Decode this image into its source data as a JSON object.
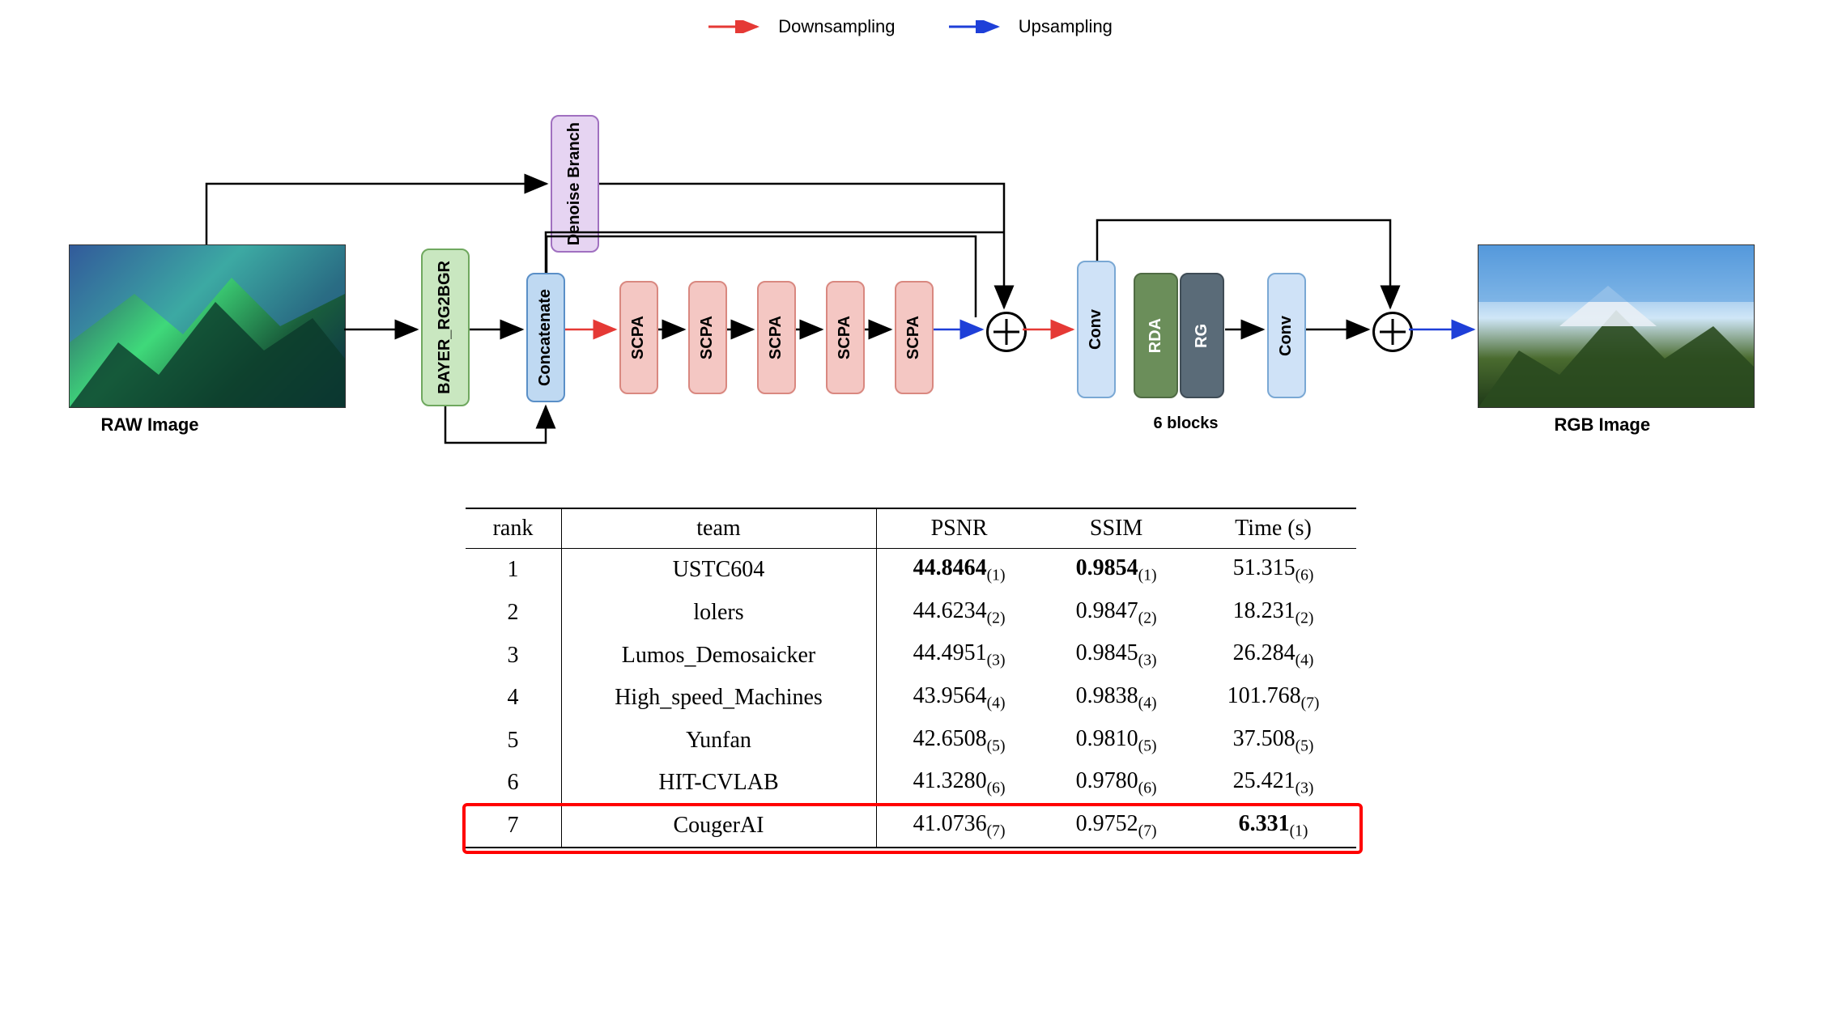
{
  "legend": {
    "downsampling": {
      "label": "Downsampling",
      "color": "#e53935"
    },
    "upsampling": {
      "label": "Upsampling",
      "color": "#1e3fd8"
    }
  },
  "diagram": {
    "raw_caption": "RAW Image",
    "rgb_caption": "RGB Image",
    "six_blocks_caption": "6 blocks",
    "blocks": {
      "denoise": {
        "label": "Denoise Branch",
        "fill": "#e6d4f2",
        "border": "#a070c0"
      },
      "bayer": {
        "label": "BAYER_RG2BGR",
        "fill": "#c9e7c0",
        "border": "#6fa85f"
      },
      "concat": {
        "label": "Concatenate",
        "fill": "#bfd9f2",
        "border": "#5a8fc7"
      },
      "scpa": {
        "label": "SCPA",
        "fill": "#f4c7c3",
        "border": "#d98880",
        "count": 5
      },
      "conv": {
        "label": "Conv",
        "fill": "#cfe2f7",
        "border": "#7aa8d4"
      },
      "rda": {
        "label": "RDA",
        "fill": "#6b8e5a",
        "border": "#4f6b43",
        "text": "#ffffff"
      },
      "rg": {
        "label": "RG",
        "fill": "#5a6b78",
        "border": "#3f4c56",
        "text": "#ffffff"
      }
    },
    "arrow_black": "#000000",
    "arrow_red": "#e53935",
    "arrow_blue": "#1e3fd8"
  },
  "table": {
    "columns": [
      "rank",
      "team",
      "PSNR",
      "SSIM",
      "Time (s)"
    ],
    "rows": [
      {
        "rank": "1",
        "team": "USTC604",
        "psnr": "44.8464",
        "psnr_sub": "(1)",
        "psnr_bold": true,
        "ssim": "0.9854",
        "ssim_sub": "(1)",
        "ssim_bold": true,
        "time": "51.315",
        "time_sub": "(6)",
        "time_bold": false
      },
      {
        "rank": "2",
        "team": "lolers",
        "psnr": "44.6234",
        "psnr_sub": "(2)",
        "psnr_bold": false,
        "ssim": "0.9847",
        "ssim_sub": "(2)",
        "ssim_bold": false,
        "time": "18.231",
        "time_sub": "(2)",
        "time_bold": false
      },
      {
        "rank": "3",
        "team": "Lumos_Demosaicker",
        "psnr": "44.4951",
        "psnr_sub": "(3)",
        "psnr_bold": false,
        "ssim": "0.9845",
        "ssim_sub": "(3)",
        "ssim_bold": false,
        "time": "26.284",
        "time_sub": "(4)",
        "time_bold": false
      },
      {
        "rank": "4",
        "team": "High_speed_Machines",
        "psnr": "43.9564",
        "psnr_sub": "(4)",
        "psnr_bold": false,
        "ssim": "0.9838",
        "ssim_sub": "(4)",
        "ssim_bold": false,
        "time": "101.768",
        "time_sub": "(7)",
        "time_bold": false
      },
      {
        "rank": "5",
        "team": "Yunfan",
        "psnr": "42.6508",
        "psnr_sub": "(5)",
        "psnr_bold": false,
        "ssim": "0.9810",
        "ssim_sub": "(5)",
        "ssim_bold": false,
        "time": "37.508",
        "time_sub": "(5)",
        "time_bold": false
      },
      {
        "rank": "6",
        "team": "HIT-CVLAB",
        "psnr": "41.3280",
        "psnr_sub": "(6)",
        "psnr_bold": false,
        "ssim": "0.9780",
        "ssim_sub": "(6)",
        "ssim_bold": false,
        "time": "25.421",
        "time_sub": "(3)",
        "time_bold": false
      },
      {
        "rank": "7",
        "team": "CougerAI",
        "psnr": "41.0736",
        "psnr_sub": "(7)",
        "psnr_bold": false,
        "ssim": "0.9752",
        "ssim_sub": "(7)",
        "ssim_bold": false,
        "time": "6.331",
        "time_sub": "(1)",
        "time_bold": true
      }
    ],
    "highlight_row_index": 6,
    "highlight_color": "#ff0000"
  }
}
